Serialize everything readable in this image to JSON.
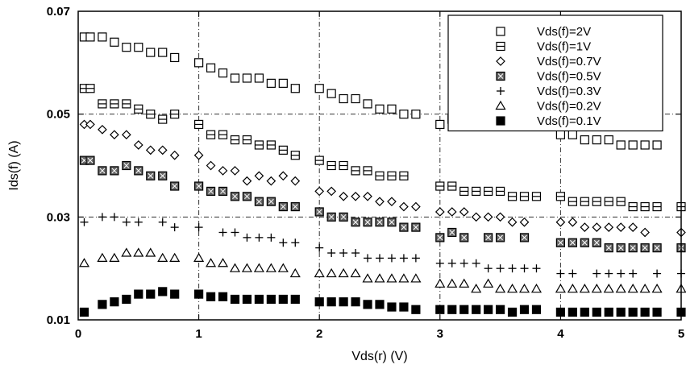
{
  "chart_data": {
    "type": "scatter",
    "title": "",
    "xlabel": "Vds(r) (V)",
    "ylabel": "Ids(f) (A)",
    "xlim": [
      0,
      5
    ],
    "ylim": [
      0.01,
      0.07
    ],
    "x_ticks": [
      "0",
      "1",
      "2",
      "3",
      "4",
      "5"
    ],
    "y_ticks": [
      "0.01",
      "0.03",
      "0.05",
      "0.07"
    ],
    "x_tick_values": [
      0,
      1,
      2,
      3,
      4,
      5
    ],
    "y_tick_values": [
      0.01,
      0.03,
      0.05,
      0.07
    ],
    "grid": true,
    "legend_position": "top-right",
    "series": [
      {
        "name": "Vds(f)=2V",
        "marker": "open-square",
        "x": [
          0.05,
          0.1,
          0.2,
          0.3,
          0.4,
          0.5,
          0.6,
          0.7,
          0.8,
          1.0,
          1.1,
          1.2,
          1.3,
          1.4,
          1.5,
          1.6,
          1.7,
          1.8,
          2.0,
          2.1,
          2.2,
          2.3,
          2.4,
          2.5,
          2.6,
          2.7,
          2.8,
          3.0,
          3.1,
          4.0,
          4.1,
          4.2,
          4.3,
          4.4,
          4.5,
          4.6,
          4.7,
          4.8
        ],
        "y": [
          0.065,
          0.065,
          0.065,
          0.064,
          0.063,
          0.063,
          0.062,
          0.062,
          0.061,
          0.06,
          0.059,
          0.058,
          0.057,
          0.057,
          0.057,
          0.056,
          0.056,
          0.055,
          0.055,
          0.054,
          0.053,
          0.053,
          0.052,
          0.051,
          0.051,
          0.05,
          0.05,
          0.048,
          0.049,
          0.046,
          0.046,
          0.045,
          0.045,
          0.045,
          0.044,
          0.044,
          0.044,
          0.044
        ]
      },
      {
        "name": "Vds(f)=1V",
        "marker": "banded-square",
        "x": [
          0.05,
          0.1,
          0.2,
          0.3,
          0.4,
          0.5,
          0.6,
          0.7,
          0.8,
          1.0,
          1.1,
          1.2,
          1.3,
          1.4,
          1.5,
          1.6,
          1.7,
          1.8,
          2.0,
          2.1,
          2.2,
          2.3,
          2.4,
          2.5,
          2.6,
          2.7,
          3.0,
          3.1,
          3.2,
          3.3,
          3.4,
          3.5,
          3.6,
          3.7,
          3.8,
          4.0,
          4.1,
          4.2,
          4.3,
          4.4,
          4.5,
          4.6,
          4.7,
          4.8,
          5.0
        ],
        "y": [
          0.055,
          0.055,
          0.052,
          0.052,
          0.052,
          0.051,
          0.05,
          0.049,
          0.05,
          0.048,
          0.046,
          0.046,
          0.045,
          0.045,
          0.044,
          0.044,
          0.043,
          0.042,
          0.041,
          0.04,
          0.04,
          0.039,
          0.039,
          0.038,
          0.038,
          0.038,
          0.036,
          0.036,
          0.035,
          0.035,
          0.035,
          0.035,
          0.034,
          0.034,
          0.034,
          0.034,
          0.033,
          0.033,
          0.033,
          0.033,
          0.033,
          0.032,
          0.032,
          0.032,
          0.032
        ]
      },
      {
        "name": "Vds(f)=0.7V",
        "marker": "open-diamond",
        "x": [
          0.05,
          0.1,
          0.2,
          0.3,
          0.4,
          0.5,
          0.6,
          0.7,
          0.8,
          1.0,
          1.1,
          1.2,
          1.3,
          1.4,
          1.5,
          1.6,
          1.7,
          1.8,
          2.0,
          2.1,
          2.2,
          2.3,
          2.4,
          2.5,
          2.6,
          2.7,
          2.8,
          3.0,
          3.1,
          3.2,
          3.3,
          3.4,
          3.5,
          3.6,
          3.7,
          4.0,
          4.1,
          4.2,
          4.3,
          4.4,
          4.5,
          4.6,
          4.7,
          5.0
        ],
        "y": [
          0.048,
          0.048,
          0.047,
          0.046,
          0.046,
          0.044,
          0.043,
          0.043,
          0.042,
          0.042,
          0.04,
          0.039,
          0.039,
          0.037,
          0.038,
          0.037,
          0.038,
          0.037,
          0.035,
          0.035,
          0.034,
          0.034,
          0.034,
          0.033,
          0.033,
          0.032,
          0.032,
          0.031,
          0.031,
          0.031,
          0.03,
          0.03,
          0.03,
          0.029,
          0.029,
          0.029,
          0.029,
          0.028,
          0.028,
          0.028,
          0.028,
          0.028,
          0.027,
          0.027
        ]
      },
      {
        "name": "Vds(f)=0.5V",
        "marker": "hatched-square",
        "x": [
          0.05,
          0.1,
          0.2,
          0.3,
          0.4,
          0.5,
          0.6,
          0.7,
          0.8,
          1.0,
          1.1,
          1.2,
          1.3,
          1.4,
          1.5,
          1.6,
          1.7,
          1.8,
          2.0,
          2.1,
          2.2,
          2.3,
          2.4,
          2.5,
          2.6,
          2.7,
          2.8,
          3.0,
          3.1,
          3.2,
          3.4,
          3.5,
          3.7,
          4.0,
          4.1,
          4.2,
          4.3,
          4.4,
          4.5,
          4.6,
          4.7,
          4.8,
          5.0
        ],
        "y": [
          0.041,
          0.041,
          0.039,
          0.039,
          0.04,
          0.039,
          0.038,
          0.038,
          0.036,
          0.036,
          0.035,
          0.035,
          0.034,
          0.034,
          0.033,
          0.033,
          0.032,
          0.032,
          0.031,
          0.03,
          0.03,
          0.029,
          0.029,
          0.029,
          0.029,
          0.028,
          0.028,
          0.026,
          0.027,
          0.026,
          0.026,
          0.026,
          0.026,
          0.025,
          0.025,
          0.025,
          0.025,
          0.024,
          0.024,
          0.024,
          0.024,
          0.024,
          0.024
        ]
      },
      {
        "name": "Vds(f)=0.3V",
        "marker": "plus",
        "x": [
          0.05,
          0.2,
          0.3,
          0.4,
          0.5,
          0.7,
          0.8,
          1.0,
          1.2,
          1.3,
          1.4,
          1.5,
          1.6,
          1.7,
          1.8,
          2.0,
          2.1,
          2.2,
          2.3,
          2.4,
          2.5,
          2.6,
          2.7,
          2.8,
          3.0,
          3.1,
          3.2,
          3.3,
          3.4,
          3.5,
          3.6,
          3.7,
          3.8,
          4.0,
          4.1,
          4.3,
          4.4,
          4.5,
          4.6,
          4.8,
          5.0
        ],
        "y": [
          0.029,
          0.03,
          0.03,
          0.029,
          0.029,
          0.029,
          0.028,
          0.028,
          0.027,
          0.027,
          0.026,
          0.026,
          0.026,
          0.025,
          0.025,
          0.024,
          0.023,
          0.023,
          0.023,
          0.022,
          0.022,
          0.022,
          0.022,
          0.022,
          0.021,
          0.021,
          0.021,
          0.021,
          0.02,
          0.02,
          0.02,
          0.02,
          0.02,
          0.019,
          0.019,
          0.019,
          0.019,
          0.019,
          0.019,
          0.019,
          0.019
        ]
      },
      {
        "name": "Vds(f)=0.2V",
        "marker": "open-triangle",
        "x": [
          0.05,
          0.2,
          0.3,
          0.4,
          0.5,
          0.6,
          0.7,
          0.8,
          1.0,
          1.1,
          1.2,
          1.3,
          1.4,
          1.5,
          1.6,
          1.7,
          1.8,
          2.0,
          2.1,
          2.2,
          2.3,
          2.4,
          2.5,
          2.6,
          2.7,
          2.8,
          3.0,
          3.1,
          3.2,
          3.3,
          3.4,
          3.5,
          3.6,
          3.7,
          3.8,
          4.0,
          4.1,
          4.2,
          4.3,
          4.4,
          4.5,
          4.6,
          4.7,
          4.8,
          5.0
        ],
        "y": [
          0.021,
          0.022,
          0.022,
          0.023,
          0.023,
          0.023,
          0.022,
          0.022,
          0.022,
          0.021,
          0.021,
          0.02,
          0.02,
          0.02,
          0.02,
          0.02,
          0.019,
          0.019,
          0.019,
          0.019,
          0.019,
          0.018,
          0.018,
          0.018,
          0.018,
          0.018,
          0.017,
          0.017,
          0.017,
          0.016,
          0.017,
          0.016,
          0.016,
          0.016,
          0.016,
          0.016,
          0.016,
          0.016,
          0.016,
          0.016,
          0.016,
          0.016,
          0.016,
          0.016,
          0.016
        ]
      },
      {
        "name": "Vds(f)=0.1V",
        "marker": "filled-square",
        "x": [
          0.05,
          0.2,
          0.3,
          0.4,
          0.5,
          0.6,
          0.7,
          0.8,
          1.0,
          1.1,
          1.2,
          1.3,
          1.4,
          1.5,
          1.6,
          1.7,
          1.8,
          2.0,
          2.1,
          2.2,
          2.3,
          2.4,
          2.5,
          2.6,
          2.7,
          2.8,
          3.0,
          3.1,
          3.2,
          3.3,
          3.4,
          3.5,
          3.6,
          3.7,
          3.8,
          4.0,
          4.1,
          4.2,
          4.3,
          4.4,
          4.5,
          4.6,
          4.7,
          4.8,
          5.0
        ],
        "y": [
          0.0115,
          0.013,
          0.0135,
          0.014,
          0.015,
          0.015,
          0.0155,
          0.015,
          0.015,
          0.0145,
          0.0145,
          0.014,
          0.014,
          0.014,
          0.014,
          0.014,
          0.014,
          0.0135,
          0.0135,
          0.0135,
          0.0135,
          0.013,
          0.013,
          0.0125,
          0.0125,
          0.012,
          0.012,
          0.012,
          0.012,
          0.012,
          0.012,
          0.012,
          0.0115,
          0.012,
          0.012,
          0.0115,
          0.0115,
          0.0115,
          0.0115,
          0.0115,
          0.0115,
          0.0115,
          0.0115,
          0.0115,
          0.0115
        ]
      }
    ]
  }
}
